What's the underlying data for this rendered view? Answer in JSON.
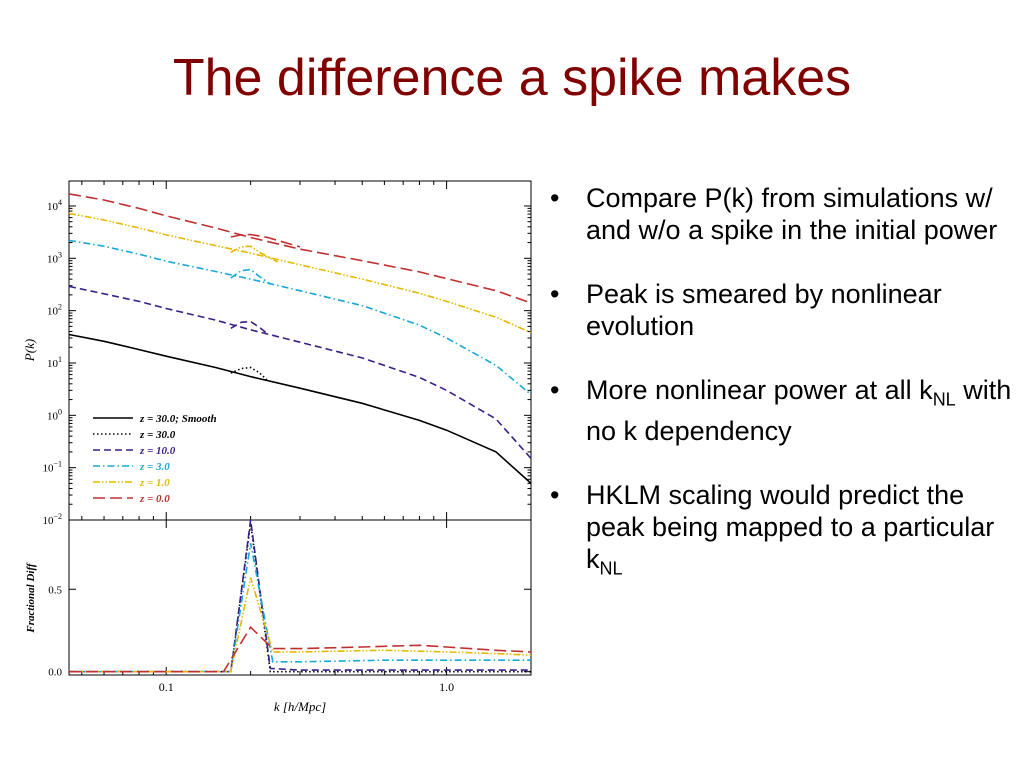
{
  "slide": {
    "title": "The difference a spike makes",
    "bullets": [
      {
        "text": "Compare P(k) from simulations w/ and w/o a spike in the initial power"
      },
      {
        "text": "Peak is smeared by nonlinear evolution"
      },
      {
        "text": "More nonlinear power at all k",
        "sub": "NL",
        "tail": " with no k dependency"
      },
      {
        "text": "HKLM scaling would predict the peak being mapped to a particular k",
        "sub": "NL",
        "tail": ""
      }
    ]
  },
  "chart_data": [
    {
      "type": "line",
      "ylabel": "P(k)",
      "xscale": "log",
      "yscale": "log",
      "xlim": [
        0.045,
        2.0
      ],
      "ylim": [
        0.01,
        30000
      ],
      "yticks": [
        {
          "v": 10000,
          "m": "10",
          "e": "4"
        },
        {
          "v": 1000,
          "m": "10",
          "e": "3"
        },
        {
          "v": 100,
          "m": "10",
          "e": "2"
        },
        {
          "v": 10,
          "m": "10",
          "e": "1"
        },
        {
          "v": 1,
          "m": "10",
          "e": "0"
        },
        {
          "v": 0.1,
          "m": "10",
          "e": "−1"
        },
        {
          "v": 0.01,
          "m": "10",
          "e": "−2"
        }
      ],
      "legend_position": "bottom-left",
      "series": [
        {
          "name": "z = 30.0; Smooth",
          "color": "#000000",
          "dash": "solid",
          "x": [
            0.045,
            0.06,
            0.08,
            0.1,
            0.15,
            0.2,
            0.3,
            0.5,
            0.8,
            1.0,
            1.5,
            2.0
          ],
          "y": [
            35,
            26,
            18,
            13.5,
            8.2,
            5.5,
            3.3,
            1.7,
            0.8,
            0.52,
            0.2,
            0.05
          ]
        },
        {
          "name": "z = 30.0",
          "color": "#000000",
          "dash": "dotted",
          "x": [
            0.17,
            0.185,
            0.2,
            0.215,
            0.23
          ],
          "y": [
            6.4,
            7.8,
            8.2,
            6.5,
            4.6
          ]
        },
        {
          "name": "z = 10.0",
          "color": "#3a1f8a",
          "dash": "dashed",
          "x": [
            0.045,
            0.06,
            0.08,
            0.1,
            0.15,
            0.2,
            0.3,
            0.5,
            0.8,
            1.0,
            1.5,
            2.0
          ],
          "y": [
            290,
            210,
            150,
            110,
            66,
            43,
            25,
            12.5,
            5.3,
            3,
            0.85,
            0.15
          ]
        },
        {
          "name": "z = 3.0",
          "color": "#18a8d8",
          "dash": "dashdot",
          "x": [
            0.045,
            0.06,
            0.08,
            0.1,
            0.15,
            0.2,
            0.3,
            0.5,
            0.8,
            1.0,
            1.5,
            2.0
          ],
          "y": [
            2200,
            1700,
            1200,
            880,
            560,
            400,
            240,
            125,
            53,
            30,
            9,
            2.5
          ]
        },
        {
          "name": "z = 1.0",
          "color": "#e6b800",
          "dash": "dashdotdot",
          "x": [
            0.045,
            0.06,
            0.08,
            0.1,
            0.15,
            0.2,
            0.3,
            0.5,
            0.8,
            1.0,
            1.5,
            2.0
          ],
          "y": [
            7200,
            5400,
            3800,
            2800,
            1750,
            1250,
            750,
            400,
            215,
            150,
            75,
            38
          ]
        },
        {
          "name": "z = 0.0",
          "color": "#c03030",
          "dash": "longdash",
          "x": [
            0.045,
            0.06,
            0.08,
            0.1,
            0.15,
            0.2,
            0.3,
            0.5,
            0.8,
            1.0,
            1.5,
            2.0
          ],
          "y": [
            17000,
            13000,
            9000,
            6500,
            3800,
            2500,
            1500,
            900,
            550,
            410,
            240,
            140
          ]
        }
      ],
      "spikes": [
        {
          "color": "#3a1f8a",
          "dash": "dashed",
          "x": [
            0.17,
            0.185,
            0.2,
            0.215,
            0.23
          ],
          "y": [
            46,
            60,
            62,
            48,
            36
          ]
        },
        {
          "color": "#18a8d8",
          "dash": "dashdot",
          "x": [
            0.17,
            0.185,
            0.2,
            0.215,
            0.235
          ],
          "y": [
            420,
            580,
            610,
            450,
            320
          ]
        },
        {
          "color": "#e6b800",
          "dash": "dashdotdot",
          "x": [
            0.17,
            0.185,
            0.2,
            0.215,
            0.25
          ],
          "y": [
            1300,
            1650,
            1700,
            1300,
            850
          ]
        },
        {
          "color": "#c03030",
          "dash": "longdash",
          "x": [
            0.17,
            0.185,
            0.2,
            0.23,
            0.3
          ],
          "y": [
            2550,
            2800,
            2850,
            2500,
            1650
          ]
        }
      ]
    },
    {
      "type": "line",
      "ylabel": "Fractional Diff",
      "xlabel": "k [h/Mpc]",
      "xscale": "log",
      "xlim": [
        0.045,
        2.0
      ],
      "ylim": [
        -0.02,
        0.92
      ],
      "yticks": [
        {
          "v": 0.0,
          "label": "0.0"
        },
        {
          "v": 0.5,
          "label": "0.5"
        }
      ],
      "xticks": [
        {
          "v": 0.1,
          "label": "0.1"
        },
        {
          "v": 1.0,
          "label": "1.0"
        }
      ],
      "series": [
        {
          "name": "z = 30.0",
          "color": "#000000",
          "dash": "dotted",
          "x": [
            0.045,
            0.17,
            0.2,
            0.235,
            2.0
          ],
          "y": [
            0,
            0,
            0.9,
            0,
            0
          ]
        },
        {
          "name": "z = 10.0",
          "color": "#3a1f8a",
          "dash": "dashed",
          "x": [
            0.045,
            0.17,
            0.2,
            0.235,
            0.3,
            2.0
          ],
          "y": [
            0,
            0,
            0.92,
            0.02,
            0.01,
            0.01
          ]
        },
        {
          "name": "z = 3.0",
          "color": "#18a8d8",
          "dash": "dashdot",
          "x": [
            0.045,
            0.17,
            0.2,
            0.24,
            0.3,
            0.6,
            1.0,
            2.0
          ],
          "y": [
            0,
            0,
            0.78,
            0.06,
            0.06,
            0.07,
            0.07,
            0.07
          ]
        },
        {
          "name": "z = 1.0",
          "color": "#e6b800",
          "dash": "dashdotdot",
          "x": [
            0.045,
            0.17,
            0.2,
            0.24,
            0.3,
            0.6,
            1.0,
            1.5,
            2.0
          ],
          "y": [
            0,
            0,
            0.57,
            0.12,
            0.12,
            0.13,
            0.12,
            0.11,
            0.1
          ]
        },
        {
          "name": "z = 0.0",
          "color": "#c03030",
          "dash": "longdash",
          "x": [
            0.045,
            0.16,
            0.2,
            0.24,
            0.3,
            0.5,
            0.8,
            1.0,
            1.5,
            2.0
          ],
          "y": [
            0,
            0,
            0.27,
            0.14,
            0.14,
            0.15,
            0.16,
            0.15,
            0.13,
            0.12
          ]
        }
      ]
    }
  ]
}
